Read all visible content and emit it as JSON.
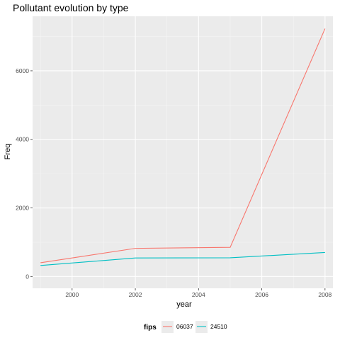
{
  "chart_data": {
    "type": "line",
    "title": "Pollutant evolution by type",
    "xlabel": "year",
    "ylabel": "Freq",
    "x": [
      1999,
      2002,
      2005,
      2008
    ],
    "xlim": [
      1998.75,
      2008.25
    ],
    "ylim": [
      -345,
      7590
    ],
    "xticks": [
      2000,
      2002,
      2004,
      2006,
      2008
    ],
    "yticks": [
      0,
      2000,
      4000,
      6000
    ],
    "grid": true,
    "legend_title": "fips",
    "legend_position": "bottom",
    "series": [
      {
        "name": "06037",
        "color": "#F8766D",
        "values": [
          400,
          820,
          850,
          7230
        ]
      },
      {
        "name": "24510",
        "color": "#00BFC4",
        "values": [
          320,
          540,
          545,
          700
        ]
      }
    ]
  },
  "colors": {
    "panel_background": "#EBEBEB",
    "grid_major": "#FFFFFF",
    "grid_minor": "#F5F5F5",
    "tick": "#333333"
  }
}
